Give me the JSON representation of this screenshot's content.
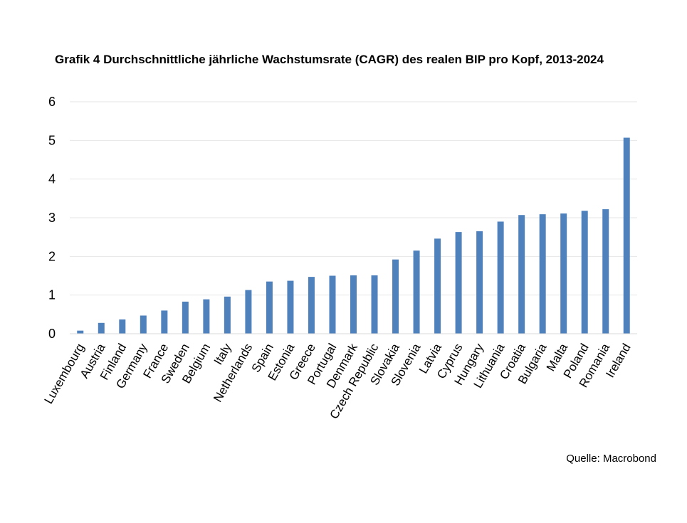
{
  "chart_data": {
    "type": "bar",
    "title": "Grafik 4 Durchschnittliche jährliche Wachstumsrate (CAGR) des realen BIP pro Kopf, 2013-2024",
    "xlabel": "",
    "ylabel": "",
    "ylim": [
      0,
      6
    ],
    "yticks": [
      "0",
      "1",
      "2",
      "3",
      "4",
      "5",
      "6"
    ],
    "grid": true,
    "legend": "none",
    "bar_color": "#4f81bd",
    "categories": [
      "Luxembourg",
      "Austria",
      "Finland",
      "Germany",
      "France",
      "Sweden",
      "Belgium",
      "Italy",
      "Netherlands",
      "Spain",
      "Estonia",
      "Greece",
      "Portugal",
      "Denmark",
      "Czech Republic",
      "Slovakia",
      "Slovenia",
      "Latvia",
      "Cyprus",
      "Hungary",
      "Lithuania",
      "Croatia",
      "Bulgaria",
      "Malta",
      "Poland",
      "Romania",
      "Ireland"
    ],
    "values": [
      0.08,
      0.28,
      0.37,
      0.47,
      0.6,
      0.83,
      0.89,
      0.96,
      1.13,
      1.35,
      1.37,
      1.47,
      1.5,
      1.51,
      1.51,
      1.92,
      2.15,
      2.46,
      2.63,
      2.65,
      2.9,
      3.07,
      3.09,
      3.11,
      3.18,
      3.22,
      5.07
    ]
  },
  "source": "Quelle: Macrobond"
}
